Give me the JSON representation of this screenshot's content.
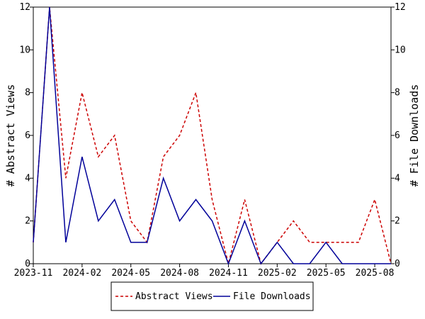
{
  "chart_data": {
    "type": "line",
    "x": [
      "2023-11",
      "2023-12",
      "2024-01",
      "2024-02",
      "2024-03",
      "2024-04",
      "2024-05",
      "2024-06",
      "2024-07",
      "2024-08",
      "2024-09",
      "2024-10",
      "2024-11",
      "2024-12",
      "2025-01",
      "2025-02",
      "2025-03",
      "2025-04",
      "2025-05",
      "2025-06",
      "2025-07",
      "2025-08",
      "2025-09"
    ],
    "xticks": [
      "2023-11",
      "2024-02",
      "2024-05",
      "2024-08",
      "2024-11",
      "2025-02",
      "2025-05",
      "2025-08"
    ],
    "yticks": [
      "0",
      "2",
      "4",
      "6",
      "8",
      "10",
      "12"
    ],
    "ylim": [
      0,
      12
    ],
    "ylabel_left": "# Abstract Views",
    "ylabel_right": "# File Downloads",
    "legend_position": "bottom-center",
    "series": [
      {
        "name": "Abstract Views",
        "color": "#cc0000",
        "style": "dashed",
        "axis": "left",
        "values": [
          1,
          12,
          4,
          8,
          5,
          6,
          2,
          1,
          5,
          6,
          8,
          3,
          0,
          3,
          0,
          1,
          2,
          1,
          1,
          1,
          1,
          3,
          0
        ]
      },
      {
        "name": "File Downloads",
        "color": "#000099",
        "style": "solid",
        "axis": "right",
        "values": [
          1,
          12,
          1,
          5,
          2,
          3,
          1,
          1,
          4,
          2,
          3,
          2,
          0,
          2,
          0,
          1,
          0,
          0,
          1,
          0,
          0,
          0,
          0
        ]
      }
    ]
  }
}
